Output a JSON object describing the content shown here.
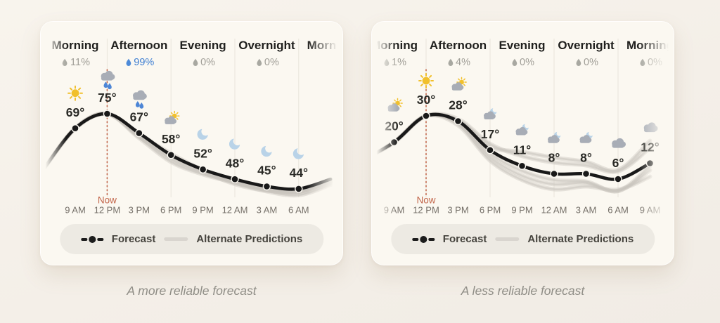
{
  "page": {
    "background": "#f4efe8",
    "card_background": "#fbf8f1"
  },
  "cards": [
    {
      "caption": "A more reliable forecast",
      "legend": {
        "forecast_label": "Forecast",
        "alternate_label": "Alternate Predictions"
      }
    },
    {
      "caption": "A less reliable forecast",
      "legend": {
        "forecast_label": "Forecast",
        "alternate_label": "Alternate Predictions"
      }
    }
  ],
  "chart_data": [
    {
      "type": "line",
      "title": "A more reliable forecast",
      "now_label": "Now",
      "now_tick_index": 1,
      "x_ticks": [
        "9 AM",
        "12 PM",
        "3 PM",
        "6 PM",
        "9 PM",
        "12 AM",
        "3 AM",
        "6 AM"
      ],
      "periods": [
        {
          "label": "Morning",
          "precip": "11%",
          "highlight": false
        },
        {
          "label": "Afternoon",
          "precip": "99%",
          "highlight": true
        },
        {
          "label": "Evening",
          "precip": "0%",
          "highlight": false
        },
        {
          "label": "Overnight",
          "precip": "0%",
          "highlight": false
        },
        {
          "label": "Morning",
          "precip": "",
          "highlight": false
        }
      ],
      "temps": [
        69,
        75,
        67,
        58,
        52,
        48,
        45,
        44
      ],
      "temp_suffix": "°",
      "show_labels": [
        true,
        true,
        true,
        true,
        true,
        true,
        true,
        true
      ],
      "icons": [
        "sun",
        "rain",
        "rain",
        "partly-sunny",
        "moon",
        "moon",
        "moon",
        "moon"
      ],
      "edge_temp_before": 52,
      "edge_temp_after": 48,
      "alternate_offsets": [
        [
          0,
          0,
          0,
          4,
          6,
          5,
          4,
          5,
          6,
          5
        ],
        [
          0,
          0,
          0,
          7,
          10,
          7,
          5,
          7,
          9,
          8
        ],
        [
          0,
          0,
          0,
          2,
          -2,
          1,
          2,
          3,
          4,
          2
        ],
        [
          0,
          0,
          0,
          5,
          3,
          3,
          7,
          6,
          3,
          4
        ]
      ]
    },
    {
      "type": "line",
      "title": "A less reliable forecast",
      "now_label": "Now",
      "now_tick_index": 1,
      "x_ticks": [
        "9 AM",
        "12 PM",
        "3 PM",
        "6 PM",
        "9 PM",
        "12 AM",
        "3 AM",
        "6 AM",
        "9 AM"
      ],
      "periods": [
        {
          "label": "Morning",
          "precip": "1%",
          "highlight": false
        },
        {
          "label": "Afternoon",
          "precip": "4%",
          "highlight": false
        },
        {
          "label": "Evening",
          "precip": "0%",
          "highlight": false
        },
        {
          "label": "Overnight",
          "precip": "0%",
          "highlight": false
        },
        {
          "label": "Morning",
          "precip": "0%",
          "highlight": false
        }
      ],
      "temps": [
        20,
        30,
        28,
        17,
        11,
        8,
        8,
        6,
        12
      ],
      "temp_suffix": "°",
      "show_labels": [
        true,
        true,
        true,
        true,
        true,
        true,
        true,
        true,
        true
      ],
      "icons": [
        "partly-sunny",
        "sun",
        "partly-sunny",
        "cloud-moon",
        "cloud-moon",
        "cloud-moon",
        "cloud-moon",
        "cloud",
        "cloud"
      ],
      "edge_temp_before": 13,
      "edge_temp_after": null,
      "alternate_offsets": [
        [
          0,
          0,
          0,
          3,
          10,
          14,
          15,
          13,
          17,
          10
        ],
        [
          0,
          0,
          0,
          6,
          15,
          20,
          22,
          18,
          15,
          19
        ],
        [
          0,
          0,
          0,
          -3,
          -9,
          -14,
          -16,
          -12,
          -11,
          -22
        ],
        [
          0,
          0,
          0,
          -1,
          -5,
          -20,
          -23,
          -17,
          -13,
          -32
        ],
        [
          0,
          0,
          0,
          2,
          5,
          7,
          9,
          11,
          17,
          4
        ]
      ]
    }
  ],
  "colors": {
    "header_text": "#20201e",
    "precip_gray": "#a09e97",
    "precip_blue": "#3d7ed2",
    "droplet_gray": "#a8a8a1",
    "droplet_blue": "#4d8ad8",
    "temp_text": "#2a2a26",
    "forecast_line": "#191919",
    "alternate_line": "#c8c4bd",
    "tick_text": "#757069",
    "now": "#c2664b",
    "divider": "#e9e5dc",
    "sun": "#f1c02c",
    "cloud": "#a8adb6",
    "moon": "#b9d3e8",
    "raindrop": "#4d86d6"
  }
}
